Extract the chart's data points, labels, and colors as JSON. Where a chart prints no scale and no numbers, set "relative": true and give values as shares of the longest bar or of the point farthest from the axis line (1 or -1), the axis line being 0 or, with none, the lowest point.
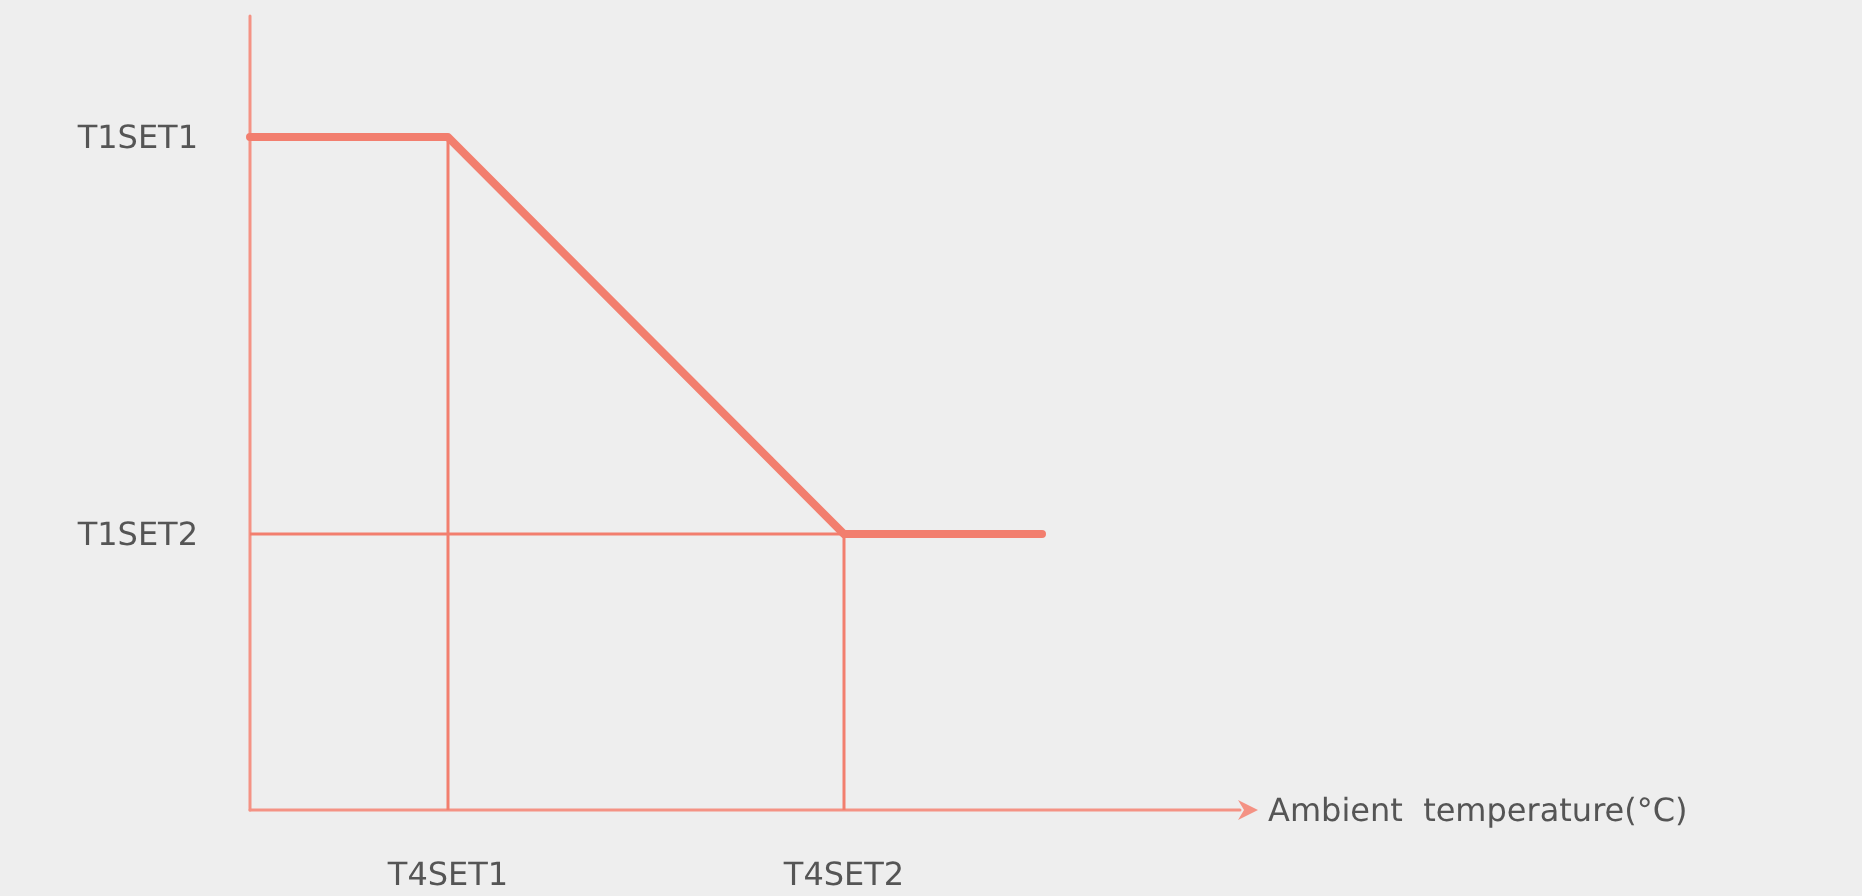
{
  "chart_data": {
    "type": "line",
    "xlabel": "Ambient  temperature(°C)",
    "relative": true,
    "categories": [
      null,
      "T4SET1",
      null,
      "T4SET2",
      null,
      null
    ],
    "series": [
      {
        "color": "#f27e6e",
        "values": [
          1,
          1,
          0.705,
          0.41,
          0.41,
          null
        ]
      }
    ],
    "ref_lines": [
      {
        "axis": "x",
        "value": "T4SET1",
        "color": "#f27e6e"
      },
      {
        "axis": "x",
        "value": "T4SET2",
        "color": "#f27e6e"
      },
      {
        "axis": "y",
        "value": 0.41,
        "label": "T1SET2",
        "color": "#f27e6e"
      }
    ],
    "annotations": [
      "T1SET1"
    ],
    "grid": false,
    "marker": "none",
    "line_style": "solid"
  }
}
